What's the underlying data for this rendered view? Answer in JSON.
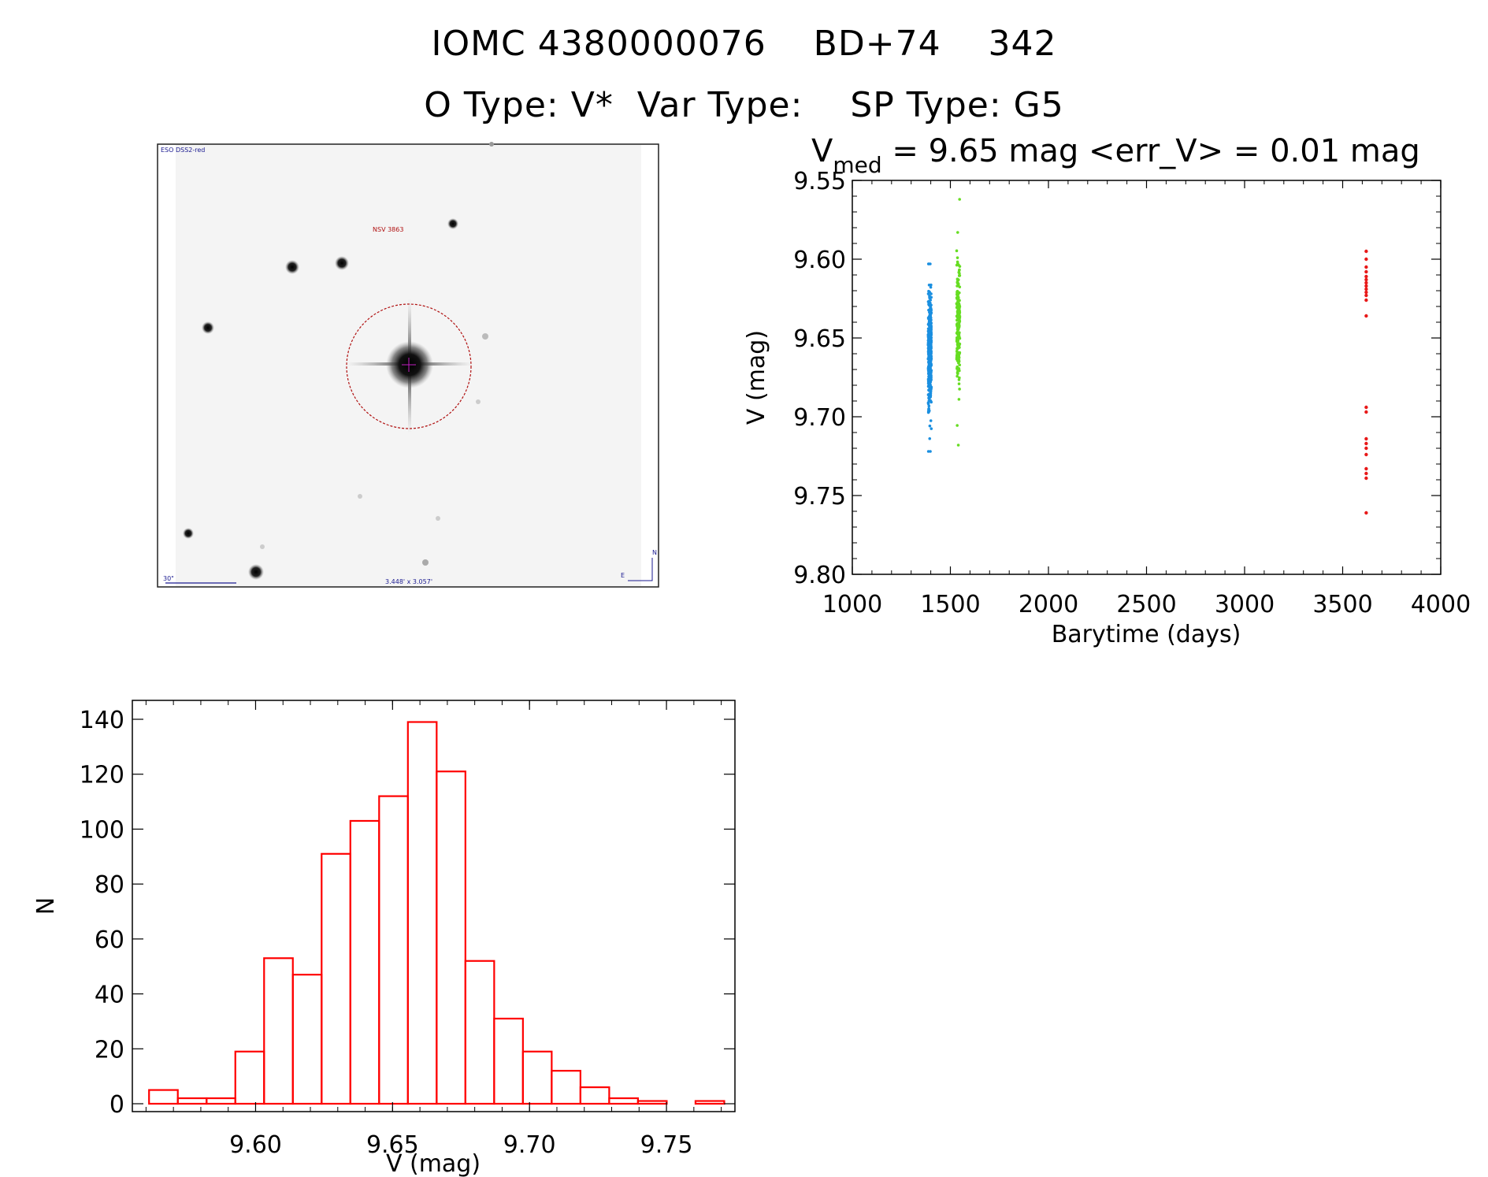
{
  "header": {
    "line1": "IOMC 4380000076    BD+74    342",
    "line2": "O Type: V*  Var Type:    SP Type: G5"
  },
  "finder_chart": {
    "survey_label": "ESO DSS2-red",
    "object_label": "NSV 3863",
    "scale_label": "30\"",
    "size_label": "3.448' x 3.057'",
    "north_label": "N",
    "east_label": "E",
    "colors": {
      "circle": "#b01010",
      "text_blue": "#1a1a90",
      "text_red": "#b01010"
    }
  },
  "chart_data": [
    {
      "type": "scatter",
      "title_parts": {
        "v": "V",
        "sub": "med",
        "rest": " = 9.65 mag <err_V> = 0.01 mag"
      },
      "xlabel": "Barytime (days)",
      "ylabel": "V (mag)",
      "xlim": [
        1000,
        4000
      ],
      "ylim": [
        9.8,
        9.55
      ],
      "y_inverted": true,
      "xticks": [
        "1000",
        "1500",
        "2000",
        "2500",
        "3000",
        "3500",
        "4000"
      ],
      "yticks": [
        "9.55",
        "9.60",
        "9.65",
        "9.70",
        "9.75",
        "9.80"
      ],
      "series": [
        {
          "color": "#1a8fe0",
          "x": 1395,
          "y_range": [
            9.603,
            9.722
          ],
          "y_center": 9.66,
          "y_sigma": 0.018,
          "count": 420
        },
        {
          "color": "#66dd22",
          "x": 1540,
          "y_range": [
            9.562,
            9.718
          ],
          "y_center": 9.64,
          "y_sigma": 0.02,
          "count": 220
        },
        {
          "color": "#e81818",
          "x": 3620,
          "y_values": [
            9.595,
            9.6,
            9.605,
            9.608,
            9.611,
            9.613,
            9.615,
            9.617,
            9.619,
            9.621,
            9.623,
            9.626,
            9.636,
            9.694,
            9.697,
            9.714,
            9.717,
            9.72,
            9.724,
            9.733,
            9.736,
            9.739,
            9.761
          ]
        }
      ]
    },
    {
      "type": "bar",
      "xlabel": "V (mag)",
      "ylabel": "N",
      "xlim": [
        9.555,
        9.775
      ],
      "ylim": [
        0,
        140
      ],
      "xticks": [
        "9.60",
        "9.65",
        "9.70",
        "9.75"
      ],
      "yticks": [
        "0",
        "20",
        "40",
        "60",
        "80",
        "100",
        "120",
        "140"
      ],
      "bin_width": 0.0105,
      "bin_start": 9.5611,
      "values": [
        5,
        2,
        2,
        19,
        53,
        47,
        91,
        103,
        112,
        139,
        121,
        52,
        31,
        19,
        12,
        6,
        2,
        1,
        0,
        1
      ],
      "color": "#ff0000"
    }
  ]
}
